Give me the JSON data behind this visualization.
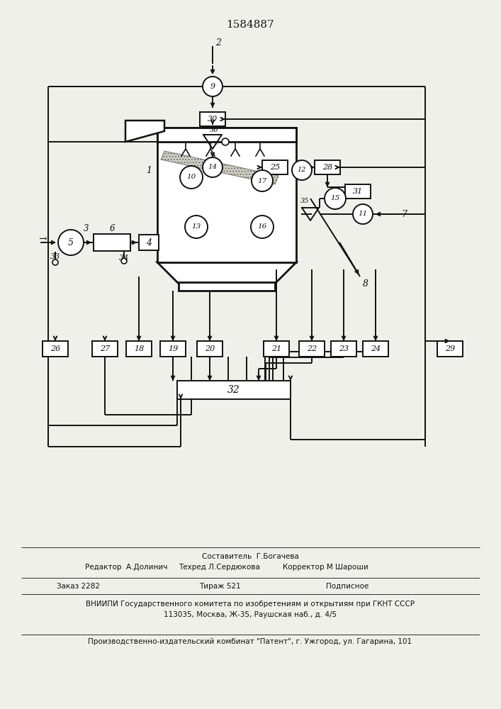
{
  "title": "1584887",
  "bg_color": "#f0f0eb",
  "line_color": "#111111",
  "footer_lines": [
    "Составитель  Г.Богачева",
    "Редактор  А.Долинич    Техред Л.Сердюкова     Корректор М Шароши",
    "Заказ 2282                    Тираж 521                    Подписное",
    "ВНИИПИ Государственного комитета по изобретениям и открытиям при ГКНТ СССР",
    "113035, Москва, Ж-35, Раушская наб., д. 4/5",
    "Производственно-издательский комбинат \"Патент\", г. Ужгород, ул. Гагарина, 101"
  ]
}
